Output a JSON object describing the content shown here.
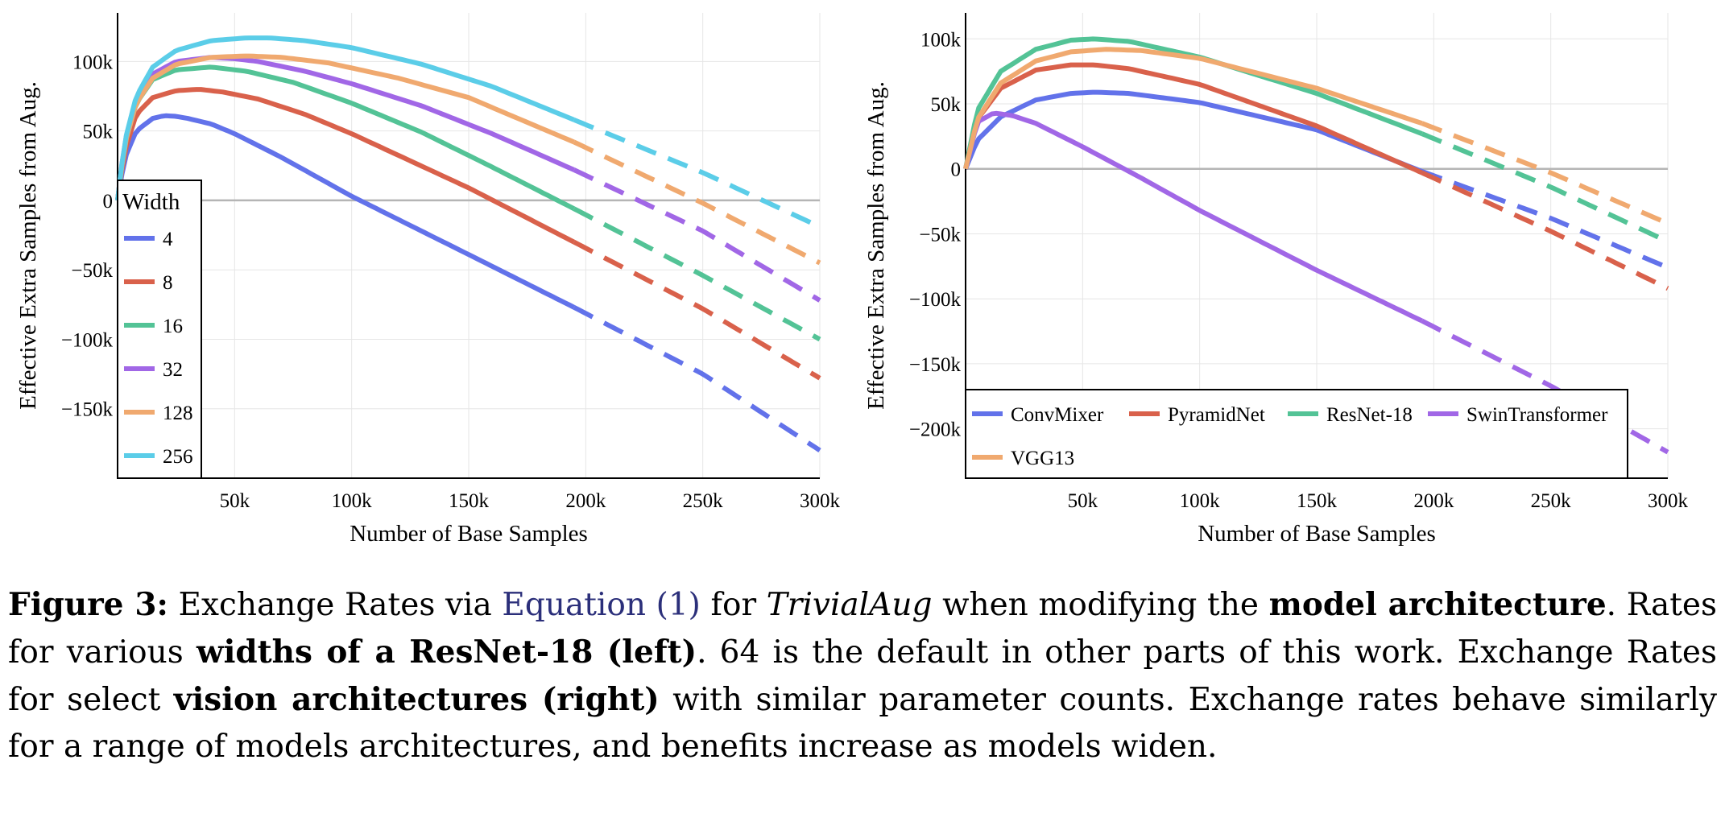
{
  "charts": [
    {
      "type": "line",
      "xlabel": "Number of Base Samples",
      "ylabel": "Effective Extra Samples from Aug.",
      "xlim": [
        0,
        300000
      ],
      "ylim": [
        -200000,
        135000
      ],
      "x_ticks": [
        {
          "value": 50000,
          "label": "50k"
        },
        {
          "value": 100000,
          "label": "100k"
        },
        {
          "value": 150000,
          "label": "150k"
        },
        {
          "value": 200000,
          "label": "200k"
        },
        {
          "value": 250000,
          "label": "250k"
        },
        {
          "value": 300000,
          "label": "300k"
        }
      ],
      "y_ticks": [
        {
          "value": 100000,
          "label": "100k"
        },
        {
          "value": 50000,
          "label": "50k"
        },
        {
          "value": 0,
          "label": "0"
        },
        {
          "value": -50000,
          "label": "−50k"
        },
        {
          "value": -100000,
          "label": "−100k"
        },
        {
          "value": -150000,
          "label": "−150k"
        }
      ],
      "solid_until": 195000,
      "legend": {
        "title": "Width",
        "position": "bottom-left",
        "columns": 1
      },
      "series": [
        {
          "name": "4",
          "color": "#6272ea",
          "x": [
            0,
            3000,
            8000,
            15000,
            20000,
            25000,
            30000,
            40000,
            50000,
            70000,
            100000,
            150000,
            195000,
            250000,
            300000
          ],
          "y": [
            0,
            30000,
            50000,
            59000,
            61000,
            60500,
            59000,
            55000,
            48000,
            31000,
            3000,
            -39000,
            -77000,
            -125000,
            -180000
          ]
        },
        {
          "name": "8",
          "color": "#d9614b",
          "x": [
            0,
            3000,
            8000,
            15000,
            25000,
            35000,
            45000,
            60000,
            80000,
            100000,
            150000,
            195000,
            250000,
            300000
          ],
          "y": [
            0,
            35000,
            62000,
            74000,
            79000,
            80000,
            78000,
            73000,
            62000,
            48000,
            9000,
            -30000,
            -78000,
            -128000
          ]
        },
        {
          "name": "16",
          "color": "#53c396",
          "x": [
            0,
            3000,
            8000,
            15000,
            25000,
            40000,
            55000,
            75000,
            100000,
            130000,
            160000,
            195000,
            250000,
            300000
          ],
          "y": [
            0,
            40000,
            70000,
            87000,
            94000,
            96000,
            93000,
            85000,
            70000,
            49000,
            24000,
            -6000,
            -54000,
            -100000
          ]
        },
        {
          "name": "32",
          "color": "#a167e6",
          "x": [
            0,
            3000,
            8000,
            15000,
            25000,
            40000,
            50000,
            60000,
            80000,
            100000,
            130000,
            160000,
            195000,
            250000,
            300000
          ],
          "y": [
            0,
            42000,
            72000,
            91000,
            100000,
            103000,
            102000,
            100000,
            93000,
            84000,
            68000,
            48000,
            22000,
            -22000,
            -72000
          ]
        },
        {
          "name": "128",
          "color": "#f0a96f",
          "x": [
            0,
            3000,
            8000,
            15000,
            25000,
            40000,
            55000,
            70000,
            90000,
            120000,
            150000,
            195000,
            250000,
            300000
          ],
          "y": [
            0,
            40000,
            70000,
            88000,
            98000,
            103000,
            104000,
            103000,
            99000,
            88000,
            74000,
            42000,
            -2000,
            -45000
          ]
        },
        {
          "name": "256",
          "color": "#5bcde8",
          "x": [
            0,
            3000,
            8000,
            15000,
            25000,
            40000,
            55000,
            65000,
            80000,
            100000,
            130000,
            160000,
            195000,
            250000,
            300000
          ],
          "y": [
            0,
            42000,
            75000,
            96000,
            108000,
            115000,
            117000,
            117000,
            115000,
            110000,
            98000,
            82000,
            58000,
            20000,
            -19000
          ]
        }
      ]
    },
    {
      "type": "line",
      "xlabel": "Number of Base Samples",
      "ylabel": "Effective Extra Samples from Aug.",
      "xlim": [
        0,
        300000
      ],
      "ylim": [
        -238000,
        120000
      ],
      "x_ticks": [
        {
          "value": 50000,
          "label": "50k"
        },
        {
          "value": 100000,
          "label": "100k"
        },
        {
          "value": 150000,
          "label": "150k"
        },
        {
          "value": 200000,
          "label": "200k"
        },
        {
          "value": 250000,
          "label": "250k"
        },
        {
          "value": 300000,
          "label": "300k"
        }
      ],
      "y_ticks": [
        {
          "value": 100000,
          "label": "100k"
        },
        {
          "value": 50000,
          "label": "50k"
        },
        {
          "value": 0,
          "label": "0"
        },
        {
          "value": -50000,
          "label": "−50k"
        },
        {
          "value": -100000,
          "label": "−100k"
        },
        {
          "value": -150000,
          "label": "−150k"
        },
        {
          "value": -200000,
          "label": "−200k"
        }
      ],
      "solid_until": 195000,
      "legend": {
        "title": "",
        "position": "bottom-left",
        "columns": 4
      },
      "series": [
        {
          "name": "ConvMixer",
          "color": "#6272ea",
          "x": [
            0,
            5000,
            15000,
            30000,
            45000,
            55000,
            70000,
            100000,
            150000,
            195000,
            250000,
            300000
          ],
          "y": [
            0,
            22000,
            40000,
            53000,
            58000,
            59000,
            58000,
            51000,
            30000,
            -2000,
            -38000,
            -76000
          ]
        },
        {
          "name": "PyramidNet",
          "color": "#d9614b",
          "x": [
            0,
            5000,
            15000,
            30000,
            45000,
            55000,
            70000,
            100000,
            150000,
            195000,
            250000,
            300000
          ],
          "y": [
            0,
            38000,
            62000,
            76000,
            80000,
            80000,
            77000,
            65000,
            33000,
            -3000,
            -48000,
            -92000
          ]
        },
        {
          "name": "ResNet-18",
          "color": "#53c396",
          "x": [
            0,
            5000,
            15000,
            30000,
            45000,
            55000,
            70000,
            100000,
            150000,
            195000,
            250000,
            300000
          ],
          "y": [
            0,
            45000,
            75000,
            92000,
            99000,
            100000,
            98000,
            86000,
            58000,
            27000,
            -14000,
            -56000
          ]
        },
        {
          "name": "SwinTransformer",
          "color": "#a167e6",
          "x": [
            0,
            5000,
            12000,
            20000,
            30000,
            50000,
            75000,
            100000,
            150000,
            195000,
            250000,
            300000
          ],
          "y": [
            0,
            36000,
            43000,
            41000,
            35000,
            17000,
            -7000,
            -32000,
            -78000,
            -117000,
            -167000,
            -218000
          ]
        },
        {
          "name": "VGG13",
          "color": "#f0a96f",
          "x": [
            0,
            5000,
            15000,
            30000,
            45000,
            60000,
            75000,
            100000,
            150000,
            195000,
            250000,
            300000
          ],
          "y": [
            0,
            38000,
            66000,
            83000,
            90000,
            92000,
            91000,
            85000,
            62000,
            35000,
            -3000,
            -42000
          ]
        }
      ]
    }
  ],
  "caption": {
    "figure_label": "Figure 3:",
    "t1": " Exchange Rates via ",
    "equation_ref": "Equation (1)",
    "t2": " for ",
    "method": "TrivialAug",
    "t3": " when modifying the ",
    "bold1": "model architecture",
    "t4": ". Rates for various ",
    "bold2": "widths of a ResNet-18 (left)",
    "t5": ". 64 is the default in other parts of this work. Exchange Rates for select ",
    "bold3": "vision architectures (right)",
    "t6": " with similar parameter counts. Exchange rates behave similarly for a range of models architectures, and benefits increase as models widen."
  }
}
